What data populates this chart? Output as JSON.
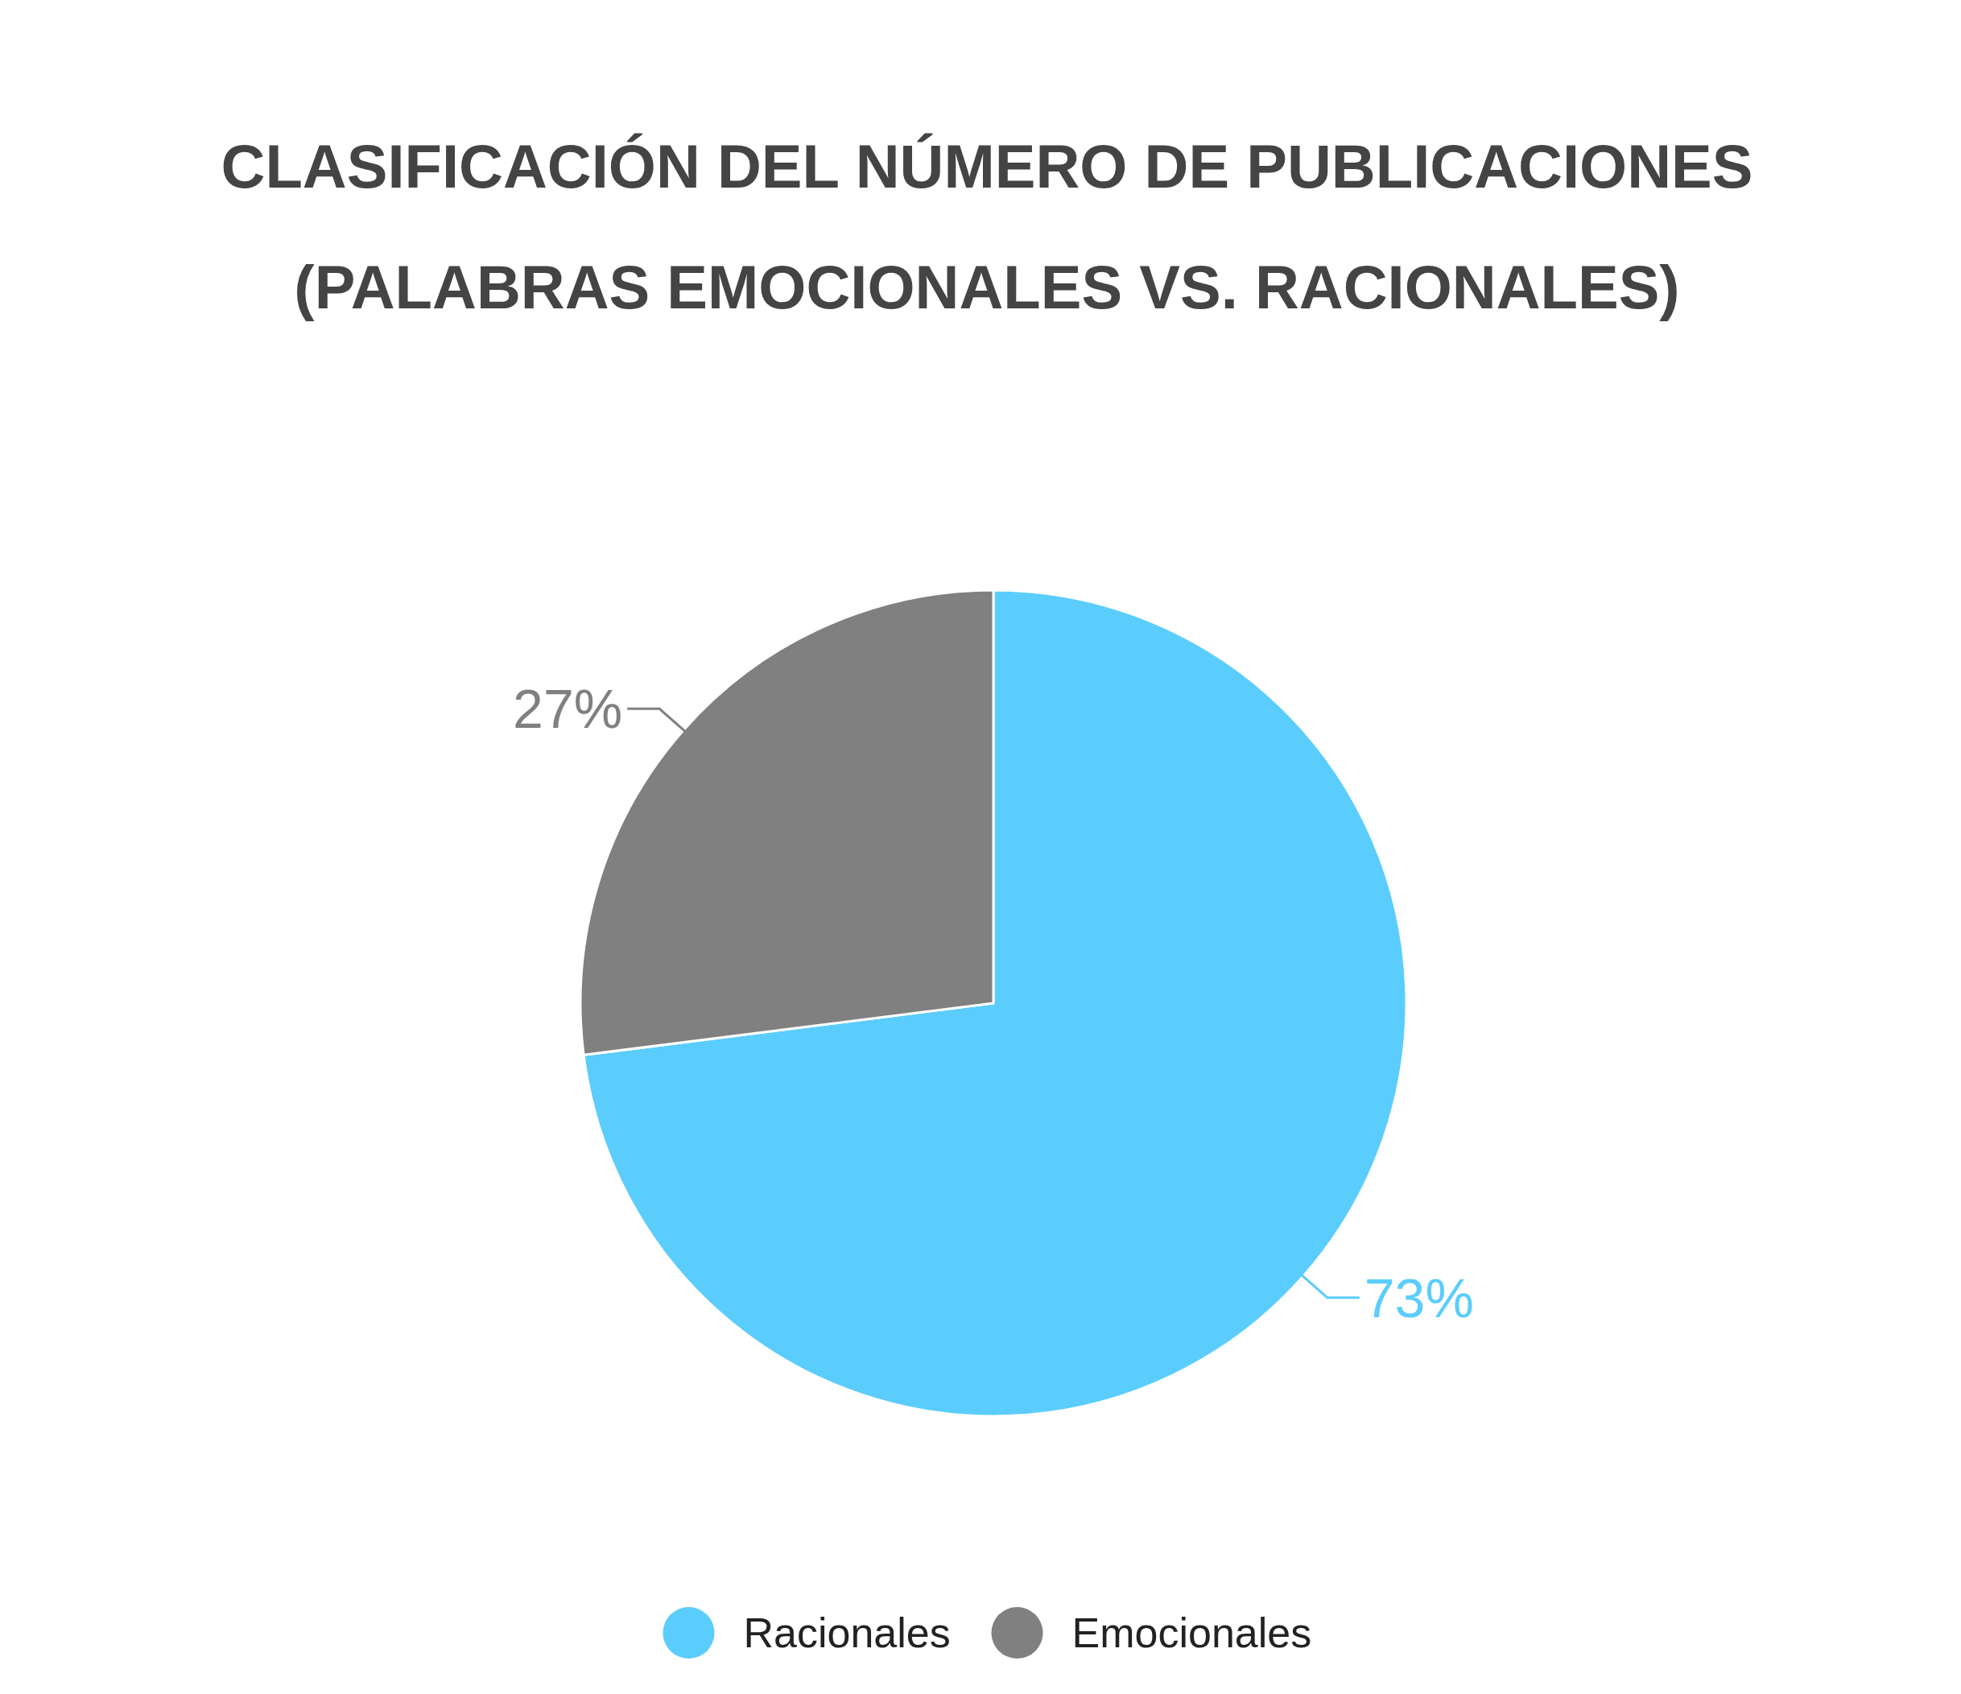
{
  "chart_data": {
    "type": "pie",
    "title": "CLASIFICACIÓN DEL NÚMERO DE PUBLICACIONES\n(PALABRAS EMOCIONALES VS. RACIONALES)",
    "categories": [
      "Racionales",
      "Emocionales"
    ],
    "values": [
      73,
      27
    ],
    "colors": [
      "#5bcdfc",
      "#808080"
    ],
    "value_labels": [
      "73%",
      "27%"
    ],
    "legend": "bottom"
  }
}
